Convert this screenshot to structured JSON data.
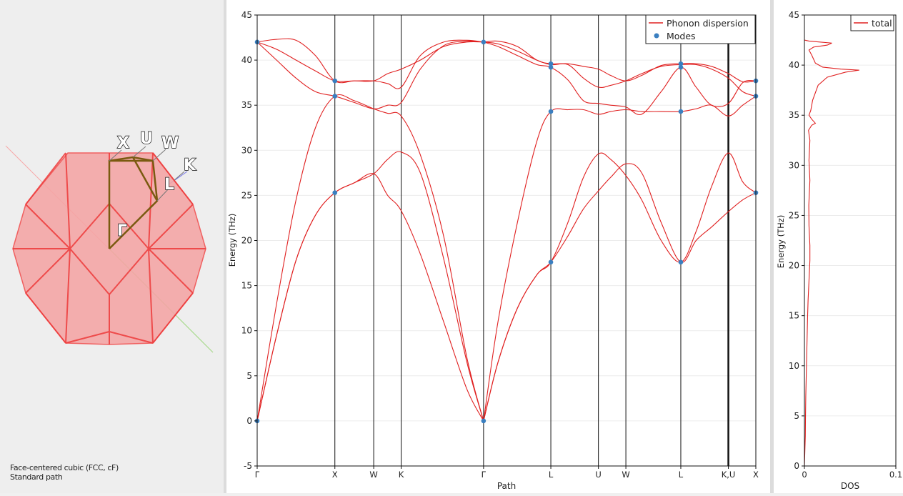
{
  "brillouin_zone": {
    "caption_line1": "Face-centered cubic (FCC, cF)",
    "caption_line2": "Standard path",
    "points": [
      "X",
      "U",
      "W",
      "K",
      "L",
      "Γ"
    ],
    "fill_color": "#f08080",
    "edge_color": "#ee3333",
    "path_color": "#8a6a10"
  },
  "chart_data": [
    {
      "type": "line",
      "title": "",
      "xlabel": "Path",
      "ylabel": "Energy (THz)",
      "ylim": [
        -5,
        45
      ],
      "yticks": [
        -5,
        0,
        5,
        10,
        15,
        20,
        25,
        30,
        35,
        40,
        45
      ],
      "grid": true,
      "legend_position": "top-right",
      "path_labels": [
        {
          "label": "Γ",
          "x": 0.0
        },
        {
          "label": "X",
          "x": 1.0
        },
        {
          "label": "W",
          "x": 1.5
        },
        {
          "label": "K",
          "x": 1.8536
        },
        {
          "label": "Γ",
          "x": 2.9142
        },
        {
          "label": "L",
          "x": 3.7802
        },
        {
          "label": "U",
          "x": 4.3926
        },
        {
          "label": "W",
          "x": 4.7461
        },
        {
          "label": "L",
          "x": 5.4532
        },
        {
          "label": "K,U",
          "x": 6.0656
        },
        {
          "label": "X",
          "x": 6.4191
        }
      ],
      "series": [
        {
          "name": "Phonon dispersion",
          "color": "#e02020"
        },
        {
          "name": "Modes",
          "color": "#3a7fc0"
        }
      ],
      "bands": [
        {
          "x": [
            0,
            0.25,
            0.5,
            0.75,
            1.0,
            1.25,
            1.5,
            1.68,
            1.8536,
            2.1,
            2.4,
            2.7,
            2.9142
          ],
          "y": [
            0,
            9.5,
            17.8,
            22.8,
            25.3,
            26.4,
            27.4,
            25.0,
            23.3,
            18.5,
            11.0,
            3.5,
            0
          ]
        },
        {
          "x": [
            0,
            0.25,
            0.5,
            0.75,
            1.0,
            1.25,
            1.5,
            1.68,
            1.8536,
            2.1,
            2.4,
            2.7,
            2.9142
          ],
          "y": [
            0,
            9.5,
            17.8,
            22.8,
            25.3,
            26.4,
            27.4,
            29.0,
            29.8,
            27.5,
            18.0,
            6.5,
            0
          ]
        },
        {
          "x": [
            0,
            0.25,
            0.5,
            0.75,
            1.0,
            1.25,
            1.5,
            1.68,
            1.8536,
            2.1,
            2.4,
            2.7,
            2.9142
          ],
          "y": [
            0,
            13.0,
            24.5,
            32.5,
            36.0,
            35.5,
            34.6,
            34.1,
            33.8,
            29.5,
            20.5,
            7.0,
            0
          ]
        },
        {
          "x": [
            0,
            0.25,
            0.5,
            0.75,
            1.0,
            1.25,
            1.5,
            1.68,
            1.8536,
            2.1,
            2.4,
            2.7,
            2.9142
          ],
          "y": [
            42.0,
            40.0,
            38.0,
            36.5,
            36.0,
            35.3,
            34.6,
            35.0,
            35.3,
            39.0,
            41.6,
            42.1,
            42.0
          ]
        },
        {
          "x": [
            0,
            0.25,
            0.5,
            0.75,
            1.0,
            1.25,
            1.5,
            1.68,
            1.8536,
            2.1,
            2.4,
            2.7,
            2.9142
          ],
          "y": [
            42.0,
            41.2,
            40.0,
            38.8,
            37.7,
            37.7,
            37.7,
            37.4,
            37.0,
            40.5,
            42.0,
            42.2,
            42.0
          ]
        },
        {
          "x": [
            0,
            0.25,
            0.5,
            0.75,
            1.0,
            1.25,
            1.5,
            1.68,
            1.8536,
            2.1,
            2.4,
            2.7,
            2.9142
          ],
          "y": [
            42.0,
            42.3,
            42.2,
            40.5,
            37.7,
            37.7,
            37.7,
            38.5,
            39.0,
            40.0,
            41.5,
            42.0,
            42.0
          ]
        },
        {
          "x": [
            2.9142,
            3.1,
            3.35,
            3.6,
            3.7802,
            4.0,
            4.2,
            4.3926,
            4.55,
            4.7461,
            4.95,
            5.2,
            5.4532,
            5.65,
            5.85,
            6.0656,
            6.25,
            6.4191
          ],
          "y": [
            0,
            6.5,
            12.5,
            16.2,
            17.6,
            20.5,
            23.5,
            25.5,
            27.0,
            28.5,
            27.5,
            22.0,
            17.6,
            20.0,
            21.5,
            23.2,
            24.5,
            25.3
          ]
        },
        {
          "x": [
            2.9142,
            3.1,
            3.35,
            3.6,
            3.7802,
            4.0,
            4.2,
            4.3926,
            4.55,
            4.7461,
            4.95,
            5.2,
            5.4532,
            5.65,
            5.85,
            6.0656,
            6.25,
            6.4191
          ],
          "y": [
            0,
            6.5,
            12.5,
            16.2,
            17.6,
            22.0,
            27.0,
            29.6,
            29.0,
            27.2,
            24.5,
            20.0,
            17.6,
            21.0,
            26.0,
            29.7,
            26.5,
            25.3
          ]
        },
        {
          "x": [
            2.9142,
            3.1,
            3.35,
            3.6,
            3.7802,
            4.0,
            4.2,
            4.3926,
            4.55,
            4.7461,
            4.95,
            5.2,
            5.4532,
            5.65,
            5.85,
            6.0656,
            6.25,
            6.4191
          ],
          "y": [
            0,
            11.0,
            22.0,
            31.0,
            34.3,
            34.5,
            34.5,
            34.0,
            34.3,
            34.5,
            34.3,
            34.3,
            34.3,
            34.6,
            35.0,
            33.8,
            35.0,
            36.0
          ]
        },
        {
          "x": [
            2.9142,
            3.1,
            3.35,
            3.6,
            3.7802,
            4.0,
            4.2,
            4.3926,
            4.55,
            4.7461,
            4.95,
            5.2,
            5.4532,
            5.65,
            5.85,
            6.0656,
            6.25,
            6.4191
          ],
          "y": [
            42.0,
            41.5,
            40.5,
            39.5,
            39.2,
            37.8,
            35.5,
            35.2,
            35.0,
            34.8,
            34.0,
            36.5,
            39.2,
            37.0,
            35.0,
            35.2,
            37.5,
            37.7
          ]
        },
        {
          "x": [
            2.9142,
            3.1,
            3.35,
            3.6,
            3.7802,
            4.0,
            4.2,
            4.3926,
            4.55,
            4.7461,
            4.95,
            5.2,
            5.4532,
            5.65,
            5.85,
            6.0656,
            6.25,
            6.4191
          ],
          "y": [
            42.0,
            41.8,
            41.0,
            40.0,
            39.5,
            39.5,
            38.0,
            37.0,
            37.2,
            37.7,
            38.5,
            39.3,
            39.5,
            39.5,
            39.0,
            38.0,
            36.5,
            36.0
          ]
        },
        {
          "x": [
            2.9142,
            3.1,
            3.35,
            3.6,
            3.7802,
            4.0,
            4.2,
            4.3926,
            4.55,
            4.7461,
            4.95,
            5.2,
            5.4532,
            5.65,
            5.85,
            6.0656,
            6.25,
            6.4191
          ],
          "y": [
            42.0,
            42.1,
            41.5,
            40.0,
            39.6,
            39.6,
            39.3,
            39.0,
            38.3,
            37.7,
            38.3,
            39.4,
            39.6,
            39.6,
            39.3,
            38.5,
            37.6,
            37.7
          ]
        }
      ],
      "modes": [
        {
          "x": 0,
          "y": 0
        },
        {
          "x": 0,
          "y": 42.0
        },
        {
          "x": 1.0,
          "y": 25.3
        },
        {
          "x": 1.0,
          "y": 36.0
        },
        {
          "x": 1.0,
          "y": 37.7
        },
        {
          "x": 2.9142,
          "y": 0
        },
        {
          "x": 2.9142,
          "y": 42.0
        },
        {
          "x": 3.7802,
          "y": 17.6
        },
        {
          "x": 3.7802,
          "y": 34.3
        },
        {
          "x": 3.7802,
          "y": 39.2
        },
        {
          "x": 3.7802,
          "y": 39.6
        },
        {
          "x": 5.4532,
          "y": 17.6
        },
        {
          "x": 5.4532,
          "y": 34.3
        },
        {
          "x": 5.4532,
          "y": 39.2
        },
        {
          "x": 5.4532,
          "y": 39.6
        },
        {
          "x": 6.4191,
          "y": 25.3
        },
        {
          "x": 6.4191,
          "y": 36.0
        },
        {
          "x": 6.4191,
          "y": 37.7
        }
      ],
      "highlight_x": 6.0656
    },
    {
      "type": "line",
      "title": "",
      "xlabel": "DOS",
      "ylabel": "Energy (THz)",
      "xlim": [
        0,
        0.1
      ],
      "xticks": [
        0,
        0.1
      ],
      "ylim": [
        0,
        45
      ],
      "yticks": [
        0,
        5,
        10,
        15,
        20,
        25,
        30,
        35,
        40,
        45
      ],
      "grid": true,
      "legend_position": "top-right",
      "series": [
        {
          "name": "total",
          "color": "#e02020",
          "x": [
            0,
            0.0005,
            0.001,
            0.0012,
            0.0015,
            0.002,
            0.0025,
            0.003,
            0.0035,
            0.004,
            0.0045,
            0.005,
            0.0055,
            0.006,
            0.006,
            0.0055,
            0.005,
            0.0048,
            0.0055,
            0.006,
            0.0055,
            0.005,
            0.0055,
            0.006,
            0.0052,
            0.0045,
            0.008,
            0.012,
            0.008,
            0.005,
            0.007,
            0.009,
            0.015,
            0.025,
            0.045,
            0.06,
            0.04,
            0.02,
            0.012,
            0.008,
            0.005,
            0.01,
            0.025,
            0.03,
            0.005,
            0
          ],
          "y": [
            0,
            1.5,
            3,
            5,
            7,
            9,
            11,
            13,
            15,
            16.5,
            17.5,
            18.5,
            19.5,
            20.5,
            22,
            23,
            24,
            26,
            27.5,
            28.5,
            29.5,
            30.5,
            31.5,
            32.5,
            33,
            33.5,
            34,
            34.2,
            34.6,
            35,
            35.5,
            36.5,
            38,
            38.8,
            39.3,
            39.5,
            39.6,
            39.8,
            40.2,
            41,
            41.5,
            41.8,
            42,
            42.2,
            42.4,
            42.5
          ]
        }
      ]
    }
  ]
}
